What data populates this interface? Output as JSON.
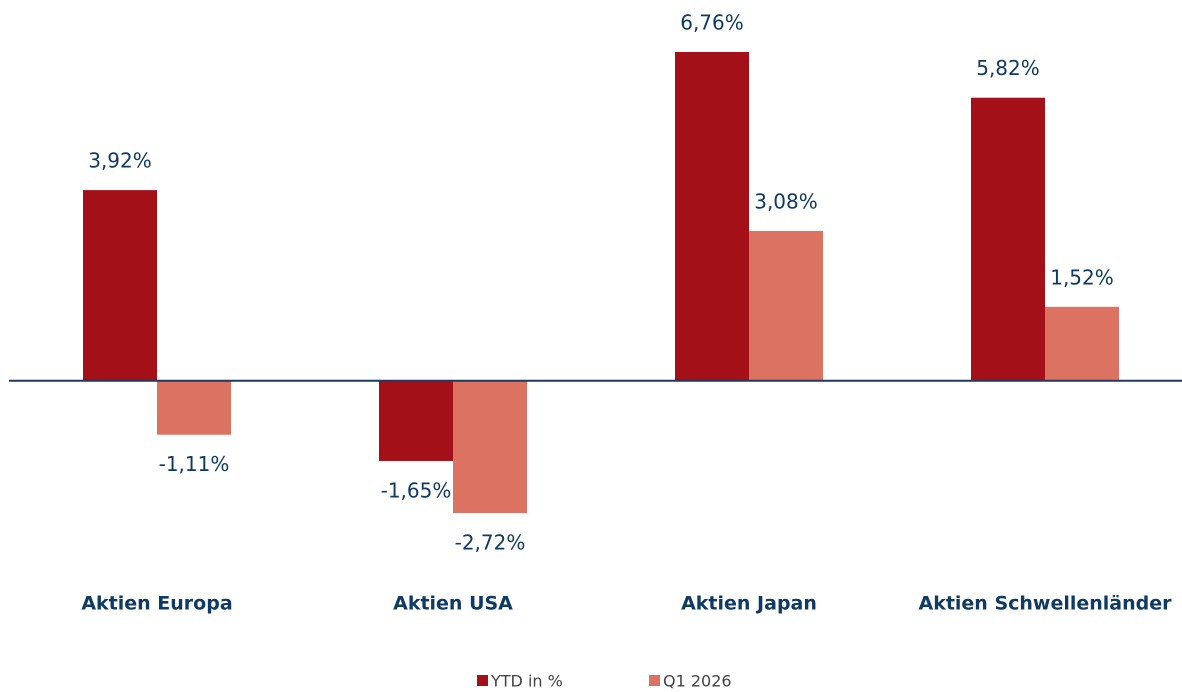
{
  "chart_data": {
    "type": "bar",
    "categories": [
      "Aktien Europa",
      "Aktien USA",
      "Aktien Japan",
      "Aktien Schwellenländer"
    ],
    "series": [
      {
        "name": "YTD in %",
        "color": "#a31018",
        "values": [
          3.92,
          -1.65,
          6.76,
          5.82
        ],
        "value_labels": [
          "3,92%",
          "-1,65%",
          "6,76%",
          "5,82%"
        ]
      },
      {
        "name": "Q1 2026",
        "color": "#dc7261",
        "values": [
          -1.11,
          -2.72,
          3.08,
          1.52
        ],
        "value_labels": [
          "-1,11%",
          "-2,72%",
          "3,08%",
          "1,52%"
        ]
      }
    ],
    "legend": "bottom"
  }
}
